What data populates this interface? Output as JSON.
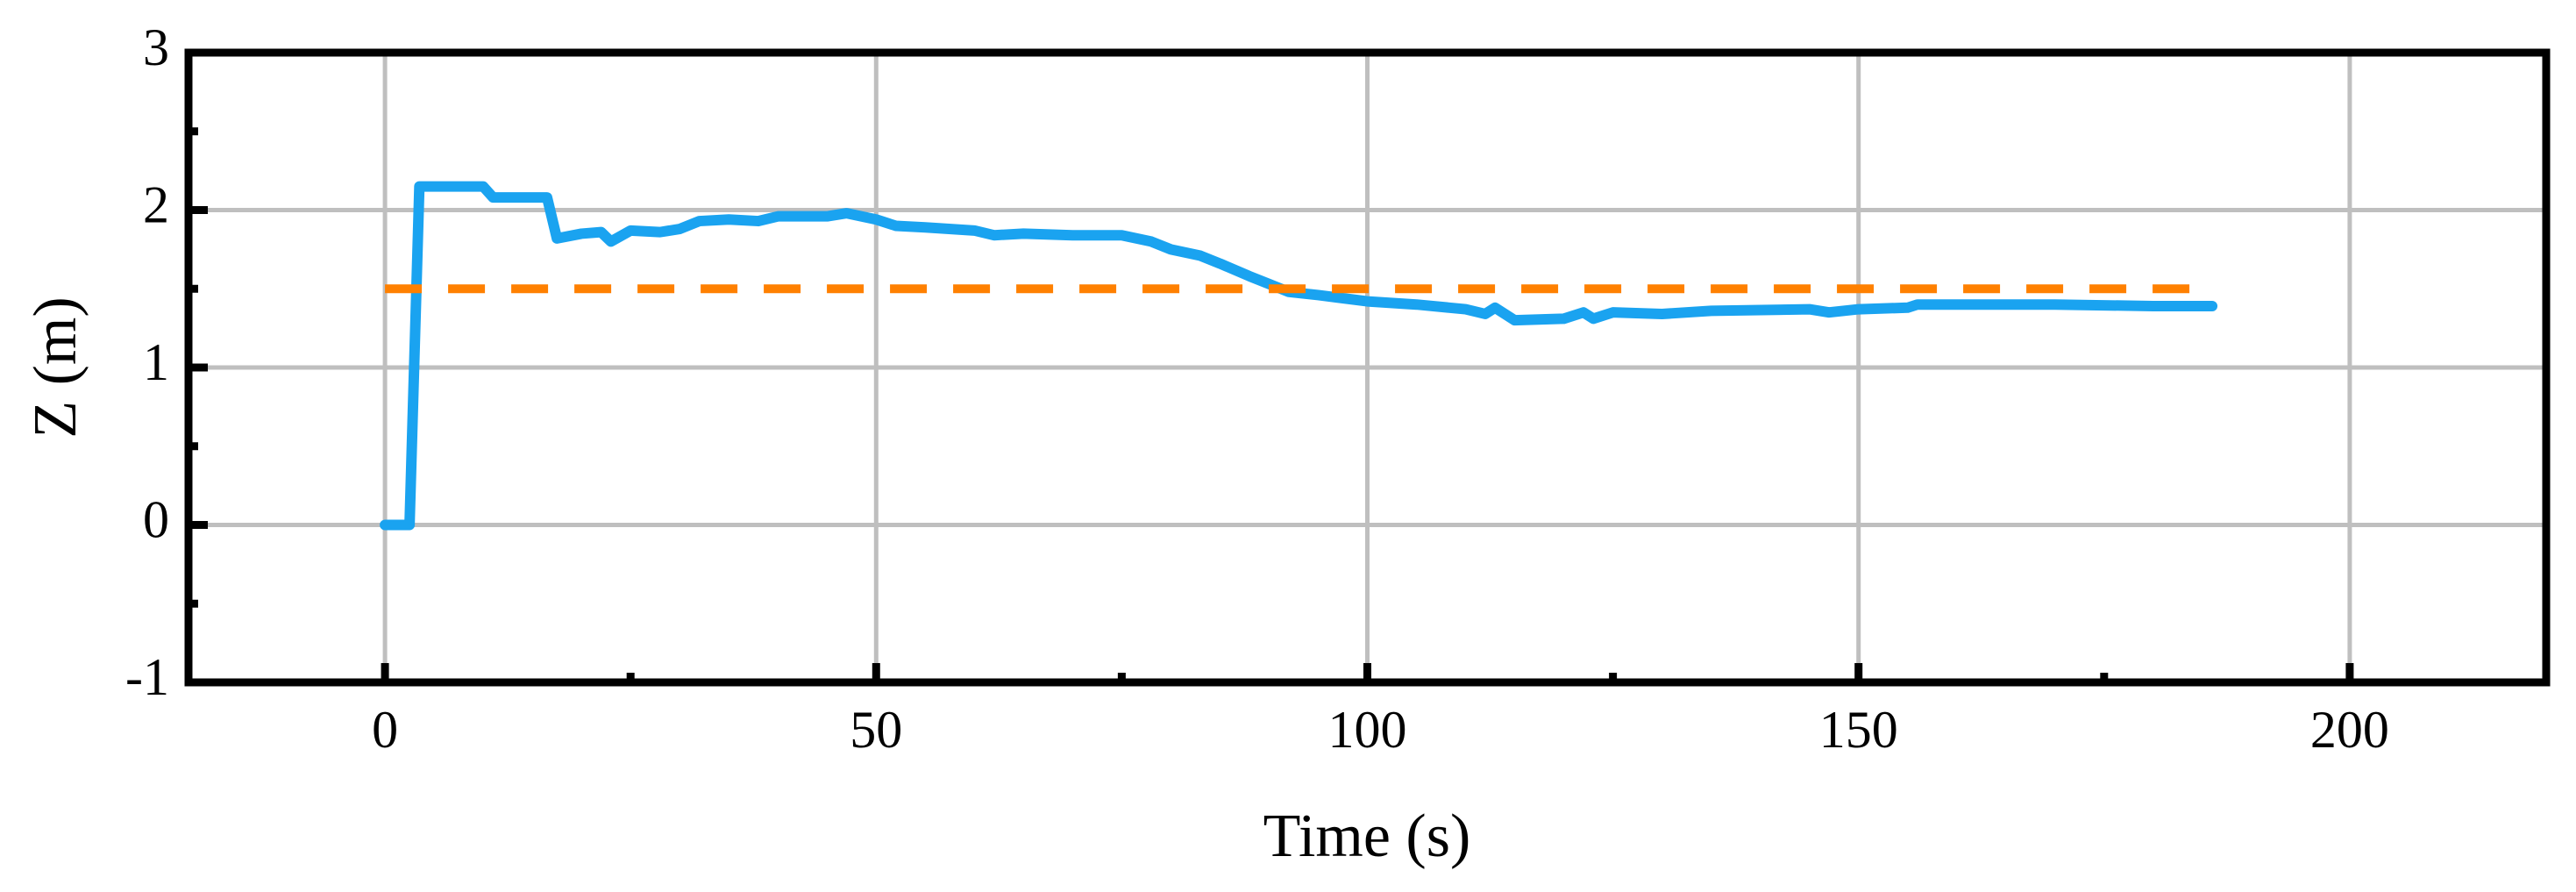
{
  "chart_data": {
    "type": "line",
    "xlabel": "Time (s)",
    "ylabel": "Z (m)",
    "xlim": [
      -20,
      220
    ],
    "ylim": [
      -1,
      3
    ],
    "xticks": [
      0,
      50,
      100,
      150,
      200
    ],
    "yticks": [
      -1,
      0,
      1,
      2,
      3
    ],
    "xminorticks": [
      25,
      75,
      125,
      175
    ],
    "yminorticks": [
      -0.5,
      0.5,
      1.5,
      2.5
    ],
    "grid": true,
    "series": [
      {
        "color": "#1aa3f0",
        "linestyle": "solid",
        "x": [
          0,
          2.5,
          3.5,
          10,
          11,
          16.5,
          17.5,
          20,
          22,
          23,
          25,
          28,
          30,
          32,
          35,
          38,
          40,
          45,
          47,
          50,
          52,
          55,
          60,
          62,
          65,
          70,
          75,
          78,
          80,
          83,
          85,
          88,
          90,
          92,
          95,
          100,
          105,
          110,
          112,
          113,
          115,
          120,
          122,
          123,
          125,
          130,
          135,
          145,
          147,
          150,
          155,
          156,
          170,
          180,
          186
        ],
        "values": [
          0,
          0,
          2.15,
          2.15,
          2.08,
          2.08,
          1.82,
          1.85,
          1.86,
          1.8,
          1.87,
          1.86,
          1.88,
          1.93,
          1.94,
          1.93,
          1.96,
          1.96,
          1.98,
          1.94,
          1.9,
          1.89,
          1.87,
          1.84,
          1.85,
          1.84,
          1.84,
          1.8,
          1.75,
          1.71,
          1.66,
          1.58,
          1.53,
          1.48,
          1.46,
          1.42,
          1.4,
          1.37,
          1.34,
          1.38,
          1.3,
          1.31,
          1.35,
          1.31,
          1.35,
          1.34,
          1.36,
          1.37,
          1.35,
          1.37,
          1.38,
          1.4,
          1.4,
          1.39,
          1.39
        ]
      },
      {
        "color": "#ff8000",
        "linestyle": "dashed",
        "x": [
          0,
          185
        ],
        "values": [
          1.5,
          1.5
        ]
      }
    ]
  }
}
